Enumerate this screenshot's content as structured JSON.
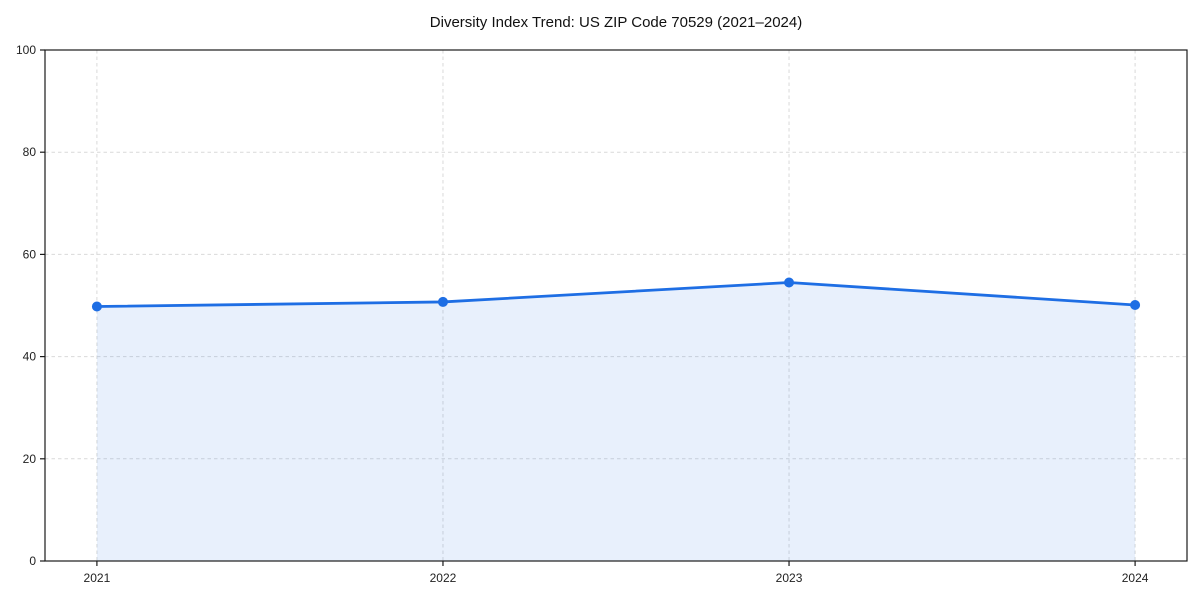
{
  "chart_data": {
    "type": "line",
    "title": "Diversity Index Trend: US ZIP Code 70529 (2021–2024)",
    "categories": [
      2021,
      2022,
      2023,
      2024
    ],
    "series": [
      {
        "name": "Diversity Index",
        "values": [
          49.8,
          50.7,
          54.5,
          50.1
        ]
      }
    ],
    "xlabel": "",
    "ylabel": "",
    "ylim": [
      0,
      100
    ],
    "yticks": [
      0,
      20,
      40,
      60,
      80,
      100
    ],
    "x_margin_frac": 0.05,
    "grid": true,
    "grid_style": "dashed",
    "area_fill": true,
    "markers": true,
    "legend": "none",
    "colors": {
      "line": "#1e6ee4",
      "area_fill": "rgba(30,110,228,0.10)",
      "grid": "#d9d9d9",
      "axis": "#1a1a1a",
      "text": "#222222",
      "background": "#ffffff"
    }
  }
}
